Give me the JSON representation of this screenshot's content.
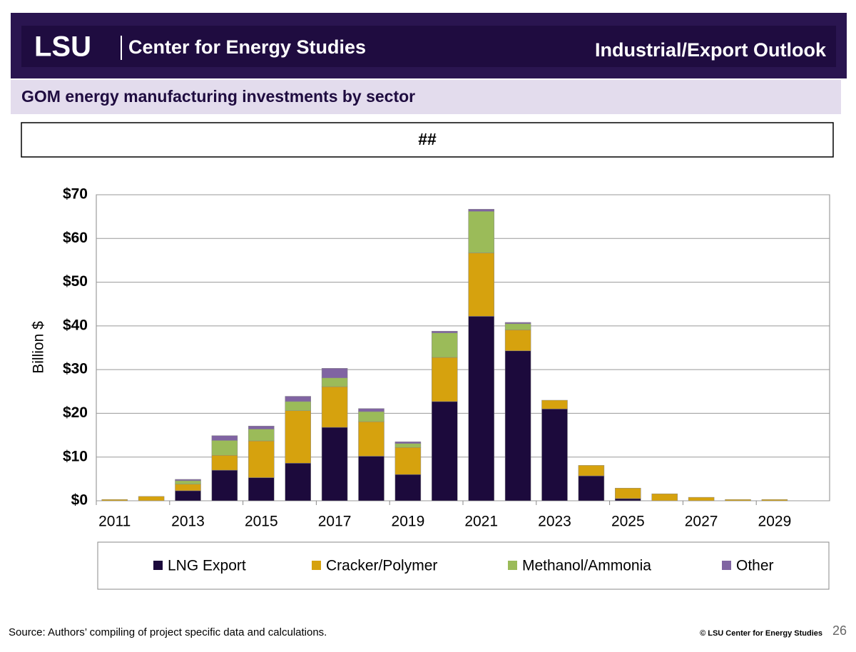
{
  "header": {
    "logo": "LSU",
    "org": "Center for Energy Studies",
    "section": "Industrial/Export Outlook"
  },
  "subtitle": "GOM energy manufacturing investments by sector",
  "banner": "##",
  "footer": {
    "source": "Source: Authors’ compiling of project specific data and calculations.",
    "copyright": "© LSU Center for Energy Studies",
    "page": "26"
  },
  "chart_data": {
    "type": "stacked_bar",
    "y_label": "Billion $",
    "categories": [
      "2011",
      null,
      "2013",
      null,
      "2015",
      null,
      "2017",
      null,
      "2019",
      null,
      "2021",
      null,
      "2023",
      null,
      "2025",
      null,
      "2027",
      null,
      "2029",
      null
    ],
    "series": [
      {
        "name": "LNG Export",
        "color": "#1c0a3c",
        "values": [
          0,
          0,
          2.3,
          7.0,
          5.3,
          8.6,
          16.8,
          10.2,
          6.0,
          22.7,
          42.2,
          34.3,
          21.0,
          5.7,
          0.5,
          0,
          0,
          0,
          0,
          0
        ]
      },
      {
        "name": "Cracker/Polymer",
        "color": "#d6a20e",
        "values": [
          0.3,
          1.0,
          1.5,
          3.4,
          8.4,
          12.0,
          9.3,
          7.9,
          6.2,
          10.1,
          14.5,
          4.8,
          2.0,
          2.4,
          2.4,
          1.6,
          0.8,
          0.3,
          0.3,
          0
        ]
      },
      {
        "name": "Methanol/Ammonia",
        "color": "#9bbb59",
        "values": [
          0,
          0,
          0.8,
          3.4,
          2.7,
          2.1,
          2.0,
          2.3,
          0.9,
          5.6,
          9.5,
          1.4,
          0,
          0,
          0,
          0,
          0,
          0,
          0,
          0
        ]
      },
      {
        "name": "Other",
        "color": "#8064a2",
        "values": [
          0,
          0,
          0.3,
          1.1,
          0.7,
          1.2,
          2.2,
          0.7,
          0.4,
          0.4,
          0.5,
          0.3,
          0,
          0,
          0,
          0,
          0,
          0,
          0,
          0
        ]
      }
    ],
    "ylim": [
      0,
      70
    ],
    "yticks": [
      {
        "value": 0,
        "label": "$0"
      },
      {
        "value": 10,
        "label": "$10"
      },
      {
        "value": 20,
        "label": "$20"
      },
      {
        "value": 30,
        "label": "$30"
      },
      {
        "value": 40,
        "label": "$40"
      },
      {
        "value": 50,
        "label": "$50"
      },
      {
        "value": 60,
        "label": "$60"
      },
      {
        "value": 70,
        "label": "$70"
      }
    ],
    "grid": true
  }
}
